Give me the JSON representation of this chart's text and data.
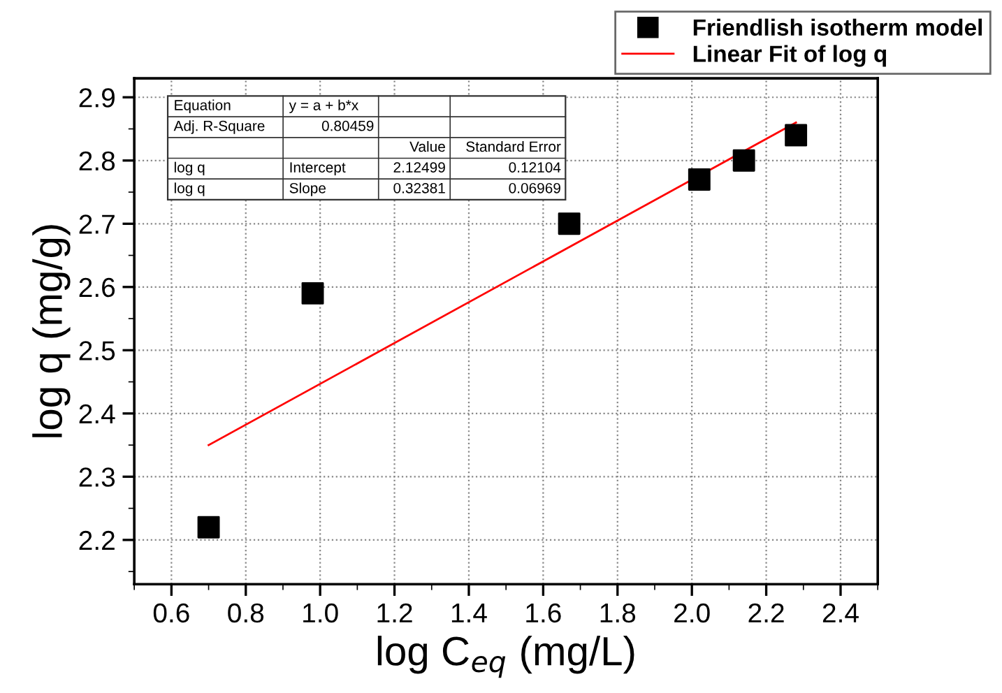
{
  "chart_data": {
    "type": "scatter",
    "xlabel": "log C$_{eq}$ (mg/L)",
    "ylabel": "log q (mg/g)",
    "xlim": [
      0.5,
      2.5
    ],
    "ylim": [
      2.13,
      2.93
    ],
    "xticks": [
      0.6,
      0.8,
      {
        "value": 1.0,
        "label": "1.0"
      },
      1.2,
      1.4,
      1.6,
      1.8,
      {
        "value": 2.0,
        "label": "2.0"
      },
      2.2,
      2.4
    ],
    "yticks": [
      2.2,
      2.3,
      2.4,
      2.5,
      2.6,
      2.7,
      2.8,
      2.9
    ],
    "grid": true,
    "legend": "top right",
    "series": [
      {
        "name": "Friendlish isotherm model",
        "marker": "square",
        "color": "#000000",
        "x": [
          0.7,
          0.98,
          1.67,
          2.02,
          2.14,
          2.28
        ],
        "values": [
          2.22,
          2.59,
          2.7,
          2.77,
          2.8,
          2.84
        ]
      },
      {
        "name": "Linear Fit of log q",
        "type": "line",
        "marker": "none",
        "color": "#ff0000",
        "x": [
          0.7,
          2.28
        ],
        "values": [
          2.35,
          2.86
        ]
      }
    ],
    "annotations": [
      "Equation",
      "y = a + b*x",
      "Adj. R-Square",
      "0.80459",
      "Value",
      "Standard Error",
      "log q",
      "Intercept",
      "2.12499",
      "0.12104",
      "log q",
      "Slope",
      "0.32381",
      "0.06969"
    ]
  }
}
